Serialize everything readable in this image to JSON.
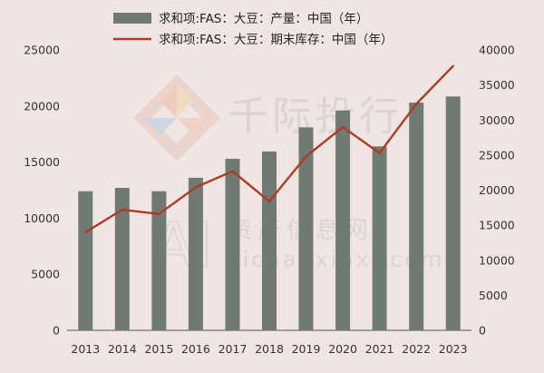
{
  "chart_data": {
    "type": "bar+line",
    "categories": [
      "2013",
      "2014",
      "2015",
      "2016",
      "2017",
      "2018",
      "2019",
      "2020",
      "2021",
      "2022",
      "2023"
    ],
    "series": [
      {
        "name": "求和项:FAS：大豆：产量：中国（年）",
        "type": "bar",
        "axis": "left",
        "color": "#6f7b72",
        "values": [
          12400,
          12700,
          12400,
          13600,
          15300,
          15950,
          18100,
          19600,
          16400,
          20300,
          20850
        ]
      },
      {
        "name": "求和项:FAS：大豆：期末库存：中国（年）",
        "type": "line",
        "axis": "right",
        "color": "#b03a22",
        "values": [
          14000,
          17200,
          16600,
          20400,
          22700,
          18400,
          24800,
          29000,
          25300,
          32300,
          37700
        ]
      }
    ],
    "y_left": {
      "min": 0,
      "max": 25000,
      "ticks": [
        "0",
        "5000",
        "10000",
        "15000",
        "20000",
        "25000"
      ]
    },
    "y_right": {
      "min": 0,
      "max": 40000,
      "ticks": [
        "0",
        "5000",
        "10000",
        "15000",
        "20000",
        "25000",
        "30000",
        "35000",
        "40000"
      ]
    },
    "legend_position": "top-center",
    "grid": false
  },
  "watermark": {
    "brand": "千际投行",
    "logo_letters": "AI",
    "sub_brand": "资产信息网",
    "url": "zichanxinxi.com"
  }
}
